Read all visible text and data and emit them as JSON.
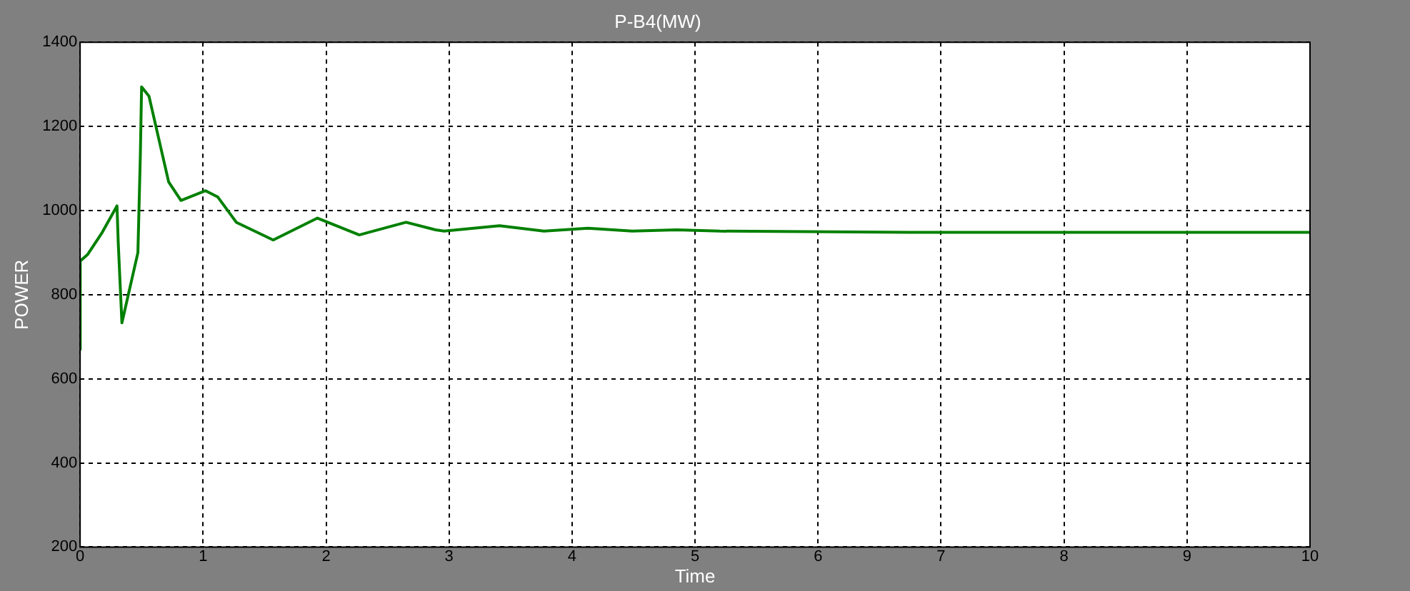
{
  "chart_data": {
    "type": "line",
    "title": "P-B4(MW)",
    "xlabel": "Time",
    "ylabel": "POWER",
    "xlim": [
      0,
      10
    ],
    "ylim": [
      200,
      1400
    ],
    "xticks": [
      0,
      1,
      2,
      3,
      4,
      5,
      6,
      7,
      8,
      9,
      10
    ],
    "yticks": [
      200,
      400,
      600,
      800,
      1000,
      1200,
      1400
    ],
    "grid": true,
    "legend": false,
    "series": [
      {
        "color": "#008000",
        "x": [
          0,
          0.001,
          0.06,
          0.18,
          0.3,
          0.31,
          0.34,
          0.47,
          0.49,
          0.5,
          0.56,
          0.72,
          0.82,
          1.02,
          1.12,
          1.27,
          1.57,
          1.93,
          2.27,
          2.65,
          2.89,
          2.96,
          3.41,
          3.77,
          4.13,
          4.49,
          4.85,
          5.2,
          6.8,
          10
        ],
        "values": [
          670,
          880,
          895,
          948,
          1011,
          924,
          733,
          900,
          1134,
          1294,
          1272,
          1068,
          1024,
          1047,
          1032,
          972,
          930,
          982,
          942,
          972,
          954,
          951,
          964,
          951,
          958,
          951,
          954,
          951,
          948,
          948
        ]
      }
    ]
  }
}
